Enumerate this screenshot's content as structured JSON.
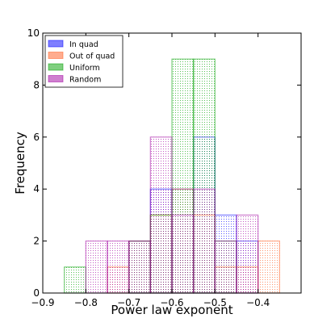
{
  "chart_data": {
    "type": "bar",
    "xlabel": "Power law exponent",
    "ylabel": "Frequency",
    "xlim": [
      -0.9,
      -0.3
    ],
    "ylim": [
      0,
      10
    ],
    "xticks": [
      -0.9,
      -0.8,
      -0.7,
      -0.6,
      -0.5,
      -0.4
    ],
    "xtick_labels": [
      "−0.9",
      "−0.8",
      "−0.7",
      "−0.6",
      "−0.5",
      "−0.4"
    ],
    "yticks": [
      0,
      2,
      4,
      6,
      8,
      10
    ],
    "ytick_labels": [
      "0",
      "2",
      "4",
      "6",
      "8",
      "10"
    ],
    "grid": false,
    "legend_position": "top-left",
    "series": [
      {
        "name": "In quad",
        "color": "#0000ff",
        "bins": [
          {
            "x0": -0.7,
            "x1": -0.65,
            "value": 2
          },
          {
            "x0": -0.65,
            "x1": -0.6,
            "value": 4
          },
          {
            "x0": -0.6,
            "x1": -0.55,
            "value": 4
          },
          {
            "x0": -0.55,
            "x1": -0.5,
            "value": 6
          },
          {
            "x0": -0.5,
            "x1": -0.45,
            "value": 3
          },
          {
            "x0": -0.45,
            "x1": -0.4,
            "value": 2
          }
        ]
      },
      {
        "name": "Out of quad",
        "color": "#ff5a1e",
        "bins": [
          {
            "x0": -0.75,
            "x1": -0.7,
            "value": 1
          },
          {
            "x0": -0.7,
            "x1": -0.65,
            "value": 2
          },
          {
            "x0": -0.65,
            "x1": -0.6,
            "value": 3
          },
          {
            "x0": -0.6,
            "x1": -0.55,
            "value": 4
          },
          {
            "x0": -0.55,
            "x1": -0.5,
            "value": 3
          },
          {
            "x0": -0.5,
            "x1": -0.45,
            "value": 1
          },
          {
            "x0": -0.45,
            "x1": -0.4,
            "value": 1
          },
          {
            "x0": -0.4,
            "x1": -0.35,
            "value": 2
          }
        ]
      },
      {
        "name": "Uniform",
        "color": "#00a000",
        "bins": [
          {
            "x0": -0.85,
            "x1": -0.8,
            "value": 1
          },
          {
            "x0": -0.8,
            "x1": -0.75,
            "value": 0
          },
          {
            "x0": -0.75,
            "x1": -0.7,
            "value": 0
          },
          {
            "x0": -0.7,
            "x1": -0.65,
            "value": 2
          },
          {
            "x0": -0.65,
            "x1": -0.6,
            "value": 3
          },
          {
            "x0": -0.6,
            "x1": -0.55,
            "value": 9
          },
          {
            "x0": -0.55,
            "x1": -0.5,
            "value": 9
          },
          {
            "x0": -0.5,
            "x1": -0.45,
            "value": 2
          }
        ]
      },
      {
        "name": "Random",
        "color": "#a000a0",
        "bins": [
          {
            "x0": -0.8,
            "x1": -0.75,
            "value": 2
          },
          {
            "x0": -0.75,
            "x1": -0.7,
            "value": 2
          },
          {
            "x0": -0.7,
            "x1": -0.65,
            "value": 2
          },
          {
            "x0": -0.65,
            "x1": -0.6,
            "value": 6
          },
          {
            "x0": -0.6,
            "x1": -0.55,
            "value": 3
          },
          {
            "x0": -0.55,
            "x1": -0.5,
            "value": 4
          },
          {
            "x0": -0.5,
            "x1": -0.45,
            "value": 2
          },
          {
            "x0": -0.45,
            "x1": -0.4,
            "value": 3
          }
        ]
      }
    ]
  }
}
